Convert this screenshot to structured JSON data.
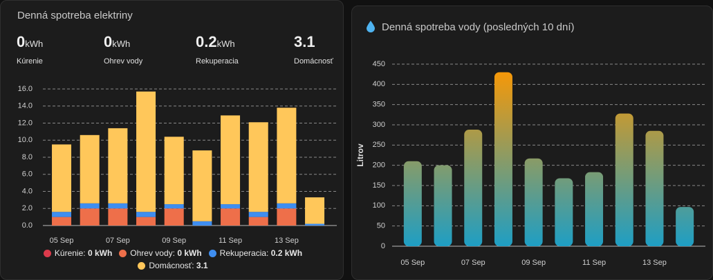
{
  "cards": [
    {
      "title": "Denná spotreba elektriny",
      "stats": [
        {
          "value": 0,
          "unit": "kWh",
          "label": "Kúrenie"
        },
        {
          "value": 0,
          "unit": "kWh",
          "label": "Ohrev vody"
        },
        {
          "value": 0.2,
          "unit": "kWh",
          "label": "Rekuperacia"
        },
        {
          "value": 3.1,
          "label": "Domácnosť"
        }
      ]
    },
    {
      "title": "Denná spotreba vody (posledných 10 dní)"
    }
  ],
  "chart_data": [
    {
      "type": "bar",
      "stacked": true,
      "categories": [
        "05 Sep",
        null,
        "07 Sep",
        null,
        "09 Sep",
        null,
        "11 Sep",
        null,
        "13 Sep",
        null
      ],
      "series": [
        {
          "name": "Kúrenie",
          "color": "#db3a4b",
          "legend_value": "0 kWh",
          "values": [
            0,
            0,
            0,
            0,
            0,
            0,
            0,
            0,
            0,
            0
          ]
        },
        {
          "name": "Ohrev vody",
          "color": "#ee6f4a",
          "legend_value": "0 kWh",
          "values": [
            1.0,
            2.0,
            2.0,
            1.0,
            2.0,
            0,
            2.0,
            1.0,
            2.0,
            0
          ]
        },
        {
          "name": "Rekuperacia",
          "color": "#3f8ef0",
          "legend_value": "0.2 kWh",
          "values": [
            0.6,
            0.6,
            0.6,
            0.6,
            0.5,
            0.5,
            0.5,
            0.6,
            0.6,
            0.2
          ]
        },
        {
          "name": "Domácnosť",
          "color": "#ffc75a",
          "legend_value": "3.1",
          "values": [
            7.9,
            8.0,
            8.8,
            14.1,
            7.9,
            8.3,
            10.4,
            10.5,
            11.2,
            3.1
          ]
        }
      ],
      "ylim": [
        0,
        16
      ],
      "yticks": [
        {
          "value": 0,
          "label": "0.0"
        },
        {
          "value": 2,
          "label": "2.0"
        },
        {
          "value": 4,
          "label": "4.0"
        },
        {
          "value": 6,
          "label": "6.0"
        },
        {
          "value": 8,
          "label": "8.0"
        },
        {
          "value": 10,
          "label": "10.0"
        },
        {
          "value": 12,
          "label": "12.0"
        },
        {
          "value": 14,
          "label": "14.0"
        },
        {
          "value": 16,
          "label": "16.0"
        }
      ],
      "grid": true,
      "legend": "bottom"
    },
    {
      "type": "bar",
      "y_label": "Litrov",
      "categories": [
        "05 Sep",
        null,
        "07 Sep",
        null,
        "09 Sep",
        null,
        "11 Sep",
        null,
        "13 Sep",
        null
      ],
      "values": [
        210,
        200,
        288,
        430,
        217,
        168,
        183,
        328,
        285,
        97
      ],
      "gradient": [
        "#ff9800",
        "#1e9ec4"
      ],
      "ylim": [
        0,
        450
      ],
      "yticks": [
        0,
        50,
        100,
        150,
        200,
        250,
        300,
        350,
        400,
        450
      ],
      "grid": true
    }
  ]
}
